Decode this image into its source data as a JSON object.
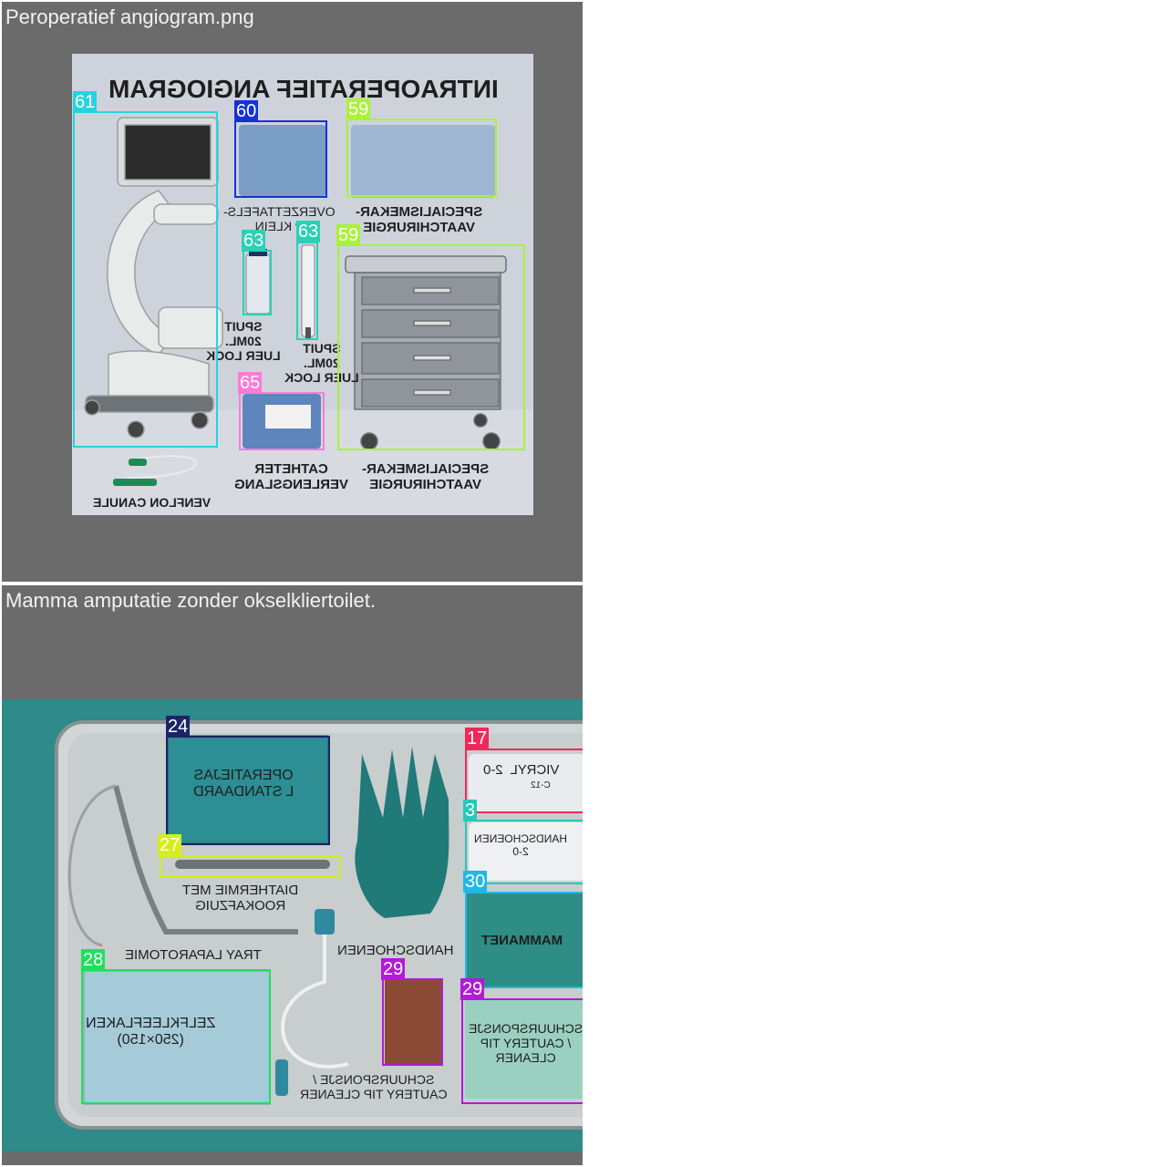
{
  "panels": [
    {
      "caption": "Peroperatief angiogram.png",
      "title": "INTRAOPERATIEF ANGIOGRAM",
      "labels": {
        "overzet": "OVERZETTAFELS-\nP KLEIN",
        "specialisme_top": "SPECIALISMEKAR-\nVAATCHIRURGIE",
        "spuit_a": "SPUIT\n20ML.\nLUER LOCK",
        "spuit_b": "SPUIT\n20ML.\nLUER LOCK",
        "venflon": "VENFLON CANULE",
        "catheter": "CATHETER\nVERLENGSLANG",
        "specialisme_bottom": "SPECIALISMEKAR-\nVAATCHIRURGIE"
      },
      "tags": [
        "61",
        "60",
        "59",
        "63",
        "63",
        "59",
        "65"
      ],
      "colors": {
        "c61": "#27d3e0",
        "c60": "#1432d8",
        "c59": "#a8f23a",
        "c63": "#2ad1b5",
        "c65": "#ff7ad6"
      }
    },
    {
      "caption": "Mamma amputatie zonder okselkliertoilet.",
      "labels": {
        "operatiejas": "OPERATIEJAS\nL STANDAARD",
        "vicryl": "VICRYL  2-0",
        "vicryl_sub": "C-12",
        "handschoenen_box": "HANDSCHOENEN\n2-0",
        "diathermie": "DIATHERMIE MET\nROOKAFZUIG",
        "tray": "TRAY LAPAROTOMIE",
        "handschoenen": "HANDSCHOENEN",
        "mammanet": "MAMMANET",
        "zelfkleef": "ZELFKLEEFLAKEN\n(250×150)",
        "schuur_right": "SCHUURSPONSJE\n/ CAUTERY TIP\nCLEANER",
        "schuur_bottom": "SCHUURSPONSJE /\nCAUTERY TIP CLEANER"
      },
      "tags": [
        "24",
        "17",
        "3",
        "27",
        "30",
        "28",
        "29",
        "29"
      ],
      "colors": {
        "c24": "#1a2466",
        "c17": "#f0285a",
        "c3": "#26c9b9",
        "c27": "#d4ee1a",
        "c30": "#22b8e6",
        "c28": "#1fe05a",
        "c29": "#b21ad8"
      }
    }
  ]
}
